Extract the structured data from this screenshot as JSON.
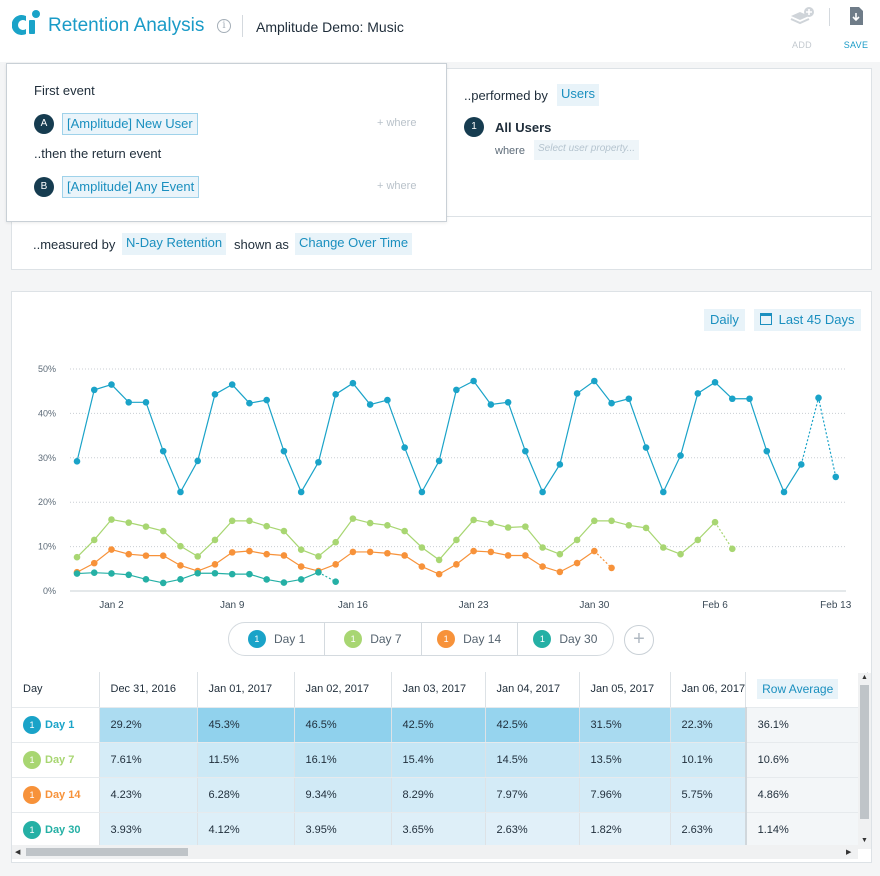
{
  "header": {
    "title": "Retention Analysis",
    "project": "Amplitude Demo: Music",
    "info_icon": "i",
    "add_label": "ADD",
    "save_label": "SAVE"
  },
  "query": {
    "first_event_label": "First event",
    "first_event": "[Amplitude] New User",
    "first_event_badge": "A",
    "return_event_label": "..then the return event",
    "return_event": "[Amplitude] Any Event",
    "return_event_badge": "B",
    "where_link": "+ where",
    "performed_by_label": "..performed by",
    "performed_by": "Users",
    "segment_badge": "1",
    "segment": "All Users",
    "where_label": "where",
    "property_placeholder": "Select user property...",
    "measured_by_label": "..measured by",
    "measured_by": "N-Day Retention",
    "shown_as_label": "shown as",
    "shown_as": "Change Over Time"
  },
  "controls": {
    "interval": "Daily",
    "range": "Last 45 Days"
  },
  "chart_data": {
    "type": "line",
    "y_ticks": [
      "0%",
      "10%",
      "20%",
      "30%",
      "40%",
      "50%"
    ],
    "ylim": [
      0,
      50
    ],
    "x_ticks": [
      "Jan 2",
      "Jan 9",
      "Jan 16",
      "Jan 23",
      "Jan 30",
      "Feb 6",
      "Feb 13"
    ],
    "x_start": "Dec 31, 2016",
    "grid": true,
    "series": [
      {
        "name": "Day 1",
        "color": "#1aa3c8",
        "values": [
          29.2,
          45.3,
          46.5,
          42.5,
          42.5,
          31.5,
          22.3,
          29.3,
          44.3,
          46.5,
          42.3,
          43.0,
          31.5,
          22.3,
          29.0,
          44.3,
          46.8,
          42.0,
          43.0,
          32.3,
          22.3,
          29.3,
          45.3,
          47.3,
          42.0,
          42.5,
          31.5,
          22.3,
          28.5,
          44.5,
          47.3,
          42.3,
          43.3,
          32.3,
          22.3,
          30.5,
          44.5,
          47.0,
          43.3,
          43.3,
          31.5,
          22.3,
          28.5,
          43.5,
          25.7
        ],
        "dotted_from": 42
      },
      {
        "name": "Day 7",
        "color": "#a8d672",
        "values": [
          7.61,
          11.5,
          16.1,
          15.4,
          14.5,
          13.5,
          10.1,
          7.8,
          11.5,
          15.8,
          15.8,
          14.6,
          13.5,
          9.3,
          7.8,
          11.0,
          16.3,
          15.3,
          14.8,
          13.5,
          9.8,
          7.0,
          11.5,
          16.0,
          15.3,
          14.3,
          14.5,
          9.8,
          8.3,
          11.5,
          15.8,
          15.8,
          14.8,
          14.2,
          9.8,
          8.3,
          11.5,
          15.5,
          9.5
        ],
        "dotted_from": 37
      },
      {
        "name": "Day 14",
        "color": "#f7923a",
        "values": [
          4.23,
          6.28,
          9.34,
          8.29,
          7.97,
          7.96,
          5.75,
          4.5,
          6.0,
          8.7,
          9.0,
          8.3,
          8.0,
          5.5,
          4.5,
          6.0,
          8.8,
          8.8,
          8.5,
          8.0,
          5.5,
          3.8,
          6.0,
          9.0,
          8.8,
          8.0,
          8.0,
          5.5,
          4.3,
          6.3,
          9.0,
          5.2
        ],
        "dotted_from": 30
      },
      {
        "name": "Day 30",
        "color": "#25b0a5",
        "values": [
          3.93,
          4.12,
          3.95,
          3.65,
          2.63,
          1.82,
          2.63,
          4.0,
          4.0,
          3.8,
          3.8,
          2.6,
          1.9,
          2.6,
          4.2,
          2.1
        ],
        "dotted_from": 14
      }
    ]
  },
  "legend": [
    {
      "label": "Day 1",
      "badge": "1",
      "color": "#1aa3c8"
    },
    {
      "label": "Day 7",
      "badge": "1",
      "color": "#a8d672"
    },
    {
      "label": "Day 14",
      "badge": "1",
      "color": "#f7923a"
    },
    {
      "label": "Day 30",
      "badge": "1",
      "color": "#25b0a5"
    }
  ],
  "table": {
    "first_header": "Day",
    "columns": [
      "Dec 31, 2016",
      "Jan 01, 2017",
      "Jan 02, 2017",
      "Jan 03, 2017",
      "Jan 04, 2017",
      "Jan 05, 2017",
      "Jan 06, 2017"
    ],
    "avg_header": "Row Average",
    "rows": [
      {
        "name": "Day 1",
        "badge": "1",
        "color": "#1aa3c8",
        "cells": [
          "29.2%",
          "45.3%",
          "46.5%",
          "42.5%",
          "42.5%",
          "31.5%",
          "22.3%"
        ],
        "avg": "36.1%",
        "values": [
          29.2,
          45.3,
          46.5,
          42.5,
          42.5,
          31.5,
          22.3
        ]
      },
      {
        "name": "Day 7",
        "badge": "1",
        "color": "#a8d672",
        "cells": [
          "7.61%",
          "11.5%",
          "16.1%",
          "15.4%",
          "14.5%",
          "13.5%",
          "10.1%"
        ],
        "avg": "10.6%",
        "values": [
          7.61,
          11.5,
          16.1,
          15.4,
          14.5,
          13.5,
          10.1
        ]
      },
      {
        "name": "Day 14",
        "badge": "1",
        "color": "#f7923a",
        "cells": [
          "4.23%",
          "6.28%",
          "9.34%",
          "8.29%",
          "7.97%",
          "7.96%",
          "5.75%"
        ],
        "avg": "4.86%",
        "values": [
          4.23,
          6.28,
          9.34,
          8.29,
          7.97,
          7.96,
          5.75
        ]
      },
      {
        "name": "Day 30",
        "badge": "1",
        "color": "#25b0a5",
        "cells": [
          "3.93%",
          "4.12%",
          "3.95%",
          "3.65%",
          "2.63%",
          "1.82%",
          "2.63%"
        ],
        "avg": "1.14%",
        "values": [
          3.93,
          4.12,
          3.95,
          3.65,
          2.63,
          1.82,
          2.63
        ]
      }
    ]
  }
}
